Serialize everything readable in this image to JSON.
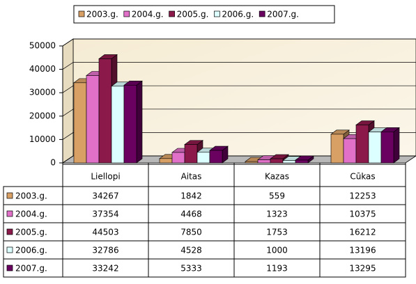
{
  "chart_data": {
    "type": "bar3d",
    "categories": [
      "Liellopi",
      "Aitas",
      "Kazas",
      "Cūkas"
    ],
    "series": [
      {
        "name": "2003.g.",
        "color": "#d9a066",
        "values": [
          34267,
          1842,
          559,
          12253
        ]
      },
      {
        "name": "2004.g.",
        "color": "#e070c8",
        "values": [
          37354,
          4468,
          1323,
          10375
        ]
      },
      {
        "name": "2005.g.",
        "color": "#8b1a4a",
        "values": [
          44503,
          7850,
          1753,
          16212
        ]
      },
      {
        "name": "2006.g.",
        "color": "#dcffff",
        "values": [
          32786,
          4528,
          1000,
          13196
        ]
      },
      {
        "name": "2007.g.",
        "color": "#6a0060",
        "values": [
          33242,
          5333,
          1193,
          13295
        ]
      }
    ],
    "ylim": [
      0,
      50000
    ],
    "yticks": [
      0,
      10000,
      20000,
      30000,
      40000,
      50000
    ],
    "grid": true,
    "legend": "top"
  }
}
